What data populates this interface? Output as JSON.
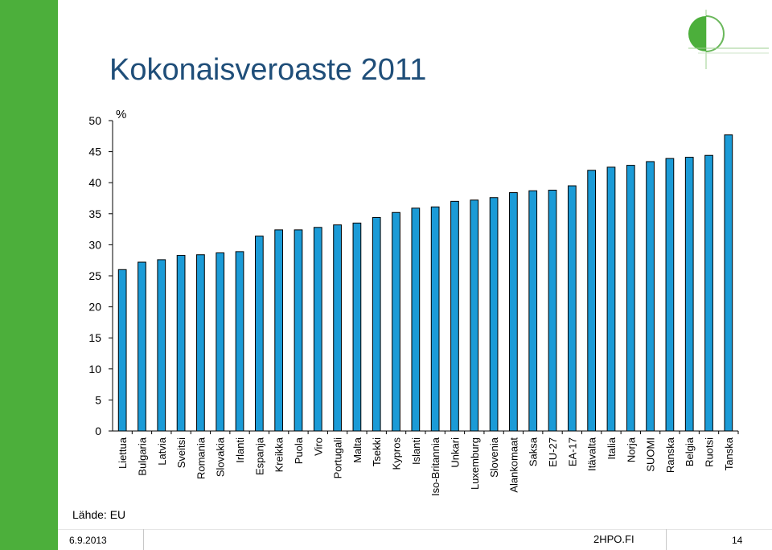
{
  "slide": {
    "title": "Kokonaisveroaste 2011",
    "source": "Lähde: EU",
    "date": "6.9.2013",
    "site": "2HPO.FI",
    "page_number": "14",
    "colors": {
      "sidebar": "#4caf3b",
      "title": "#1f4e79",
      "bar_fill": "#1b9bd7",
      "bar_stroke": "#000000"
    }
  },
  "chart_data": {
    "type": "bar",
    "ylabel": "%",
    "ylim": [
      0,
      50
    ],
    "yticks": [
      0,
      5,
      10,
      15,
      20,
      25,
      30,
      35,
      40,
      45,
      50
    ],
    "grid": false,
    "categories": [
      "Liettua",
      "Bulgaria",
      "Latvia",
      "Sveitsi",
      "Romania",
      "Slovakia",
      "Irlanti",
      "Espanja",
      "Kreikka",
      "Puola",
      "Viro",
      "Portugali",
      "Malta",
      "Tsekki",
      "Kypros",
      "Islanti",
      "Iso-Britannia",
      "Unkari",
      "Luxemburg",
      "Slovenia",
      "Alankomaat",
      "Saksa",
      "EU-27",
      "EA-17",
      "Itävalta",
      "Italia",
      "Norja",
      "SUOMI",
      "Ranska",
      "Belgia",
      "Ruotsi",
      "Tanska"
    ],
    "values": [
      26.0,
      27.2,
      27.6,
      28.3,
      28.4,
      28.7,
      28.9,
      31.4,
      32.4,
      32.4,
      32.8,
      33.2,
      33.5,
      34.4,
      35.2,
      35.9,
      36.1,
      37.0,
      37.2,
      37.6,
      38.4,
      38.7,
      38.8,
      39.5,
      42.0,
      42.5,
      42.8,
      43.4,
      43.9,
      44.1,
      44.4,
      47.7
    ]
  }
}
